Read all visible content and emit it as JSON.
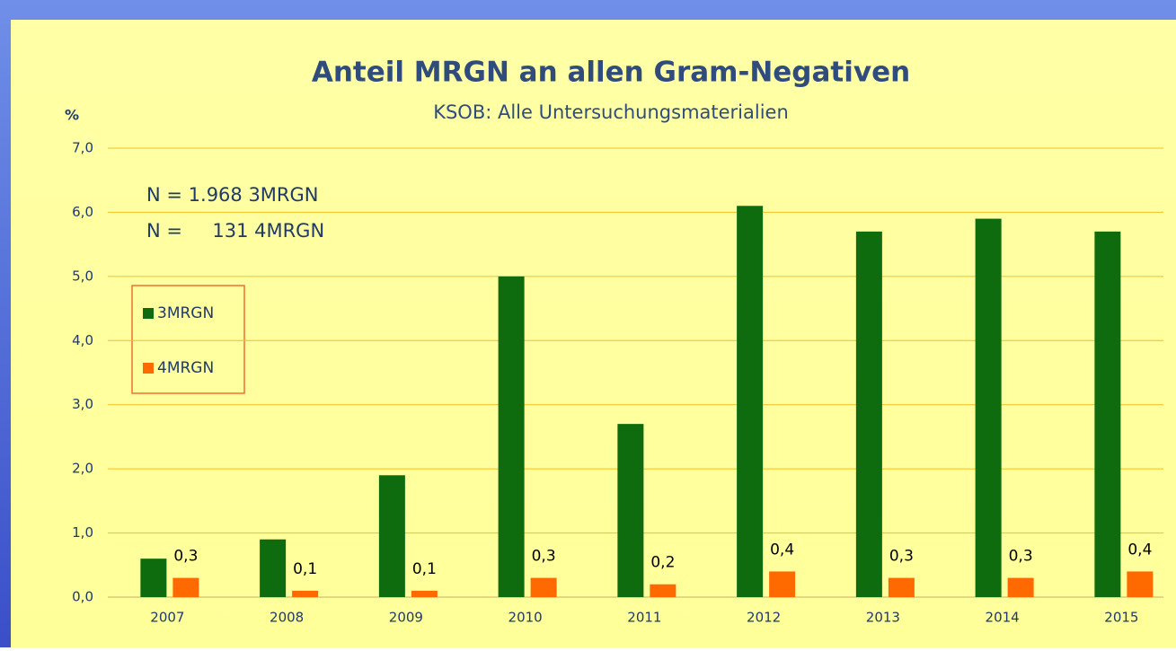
{
  "chart_data": {
    "type": "bar",
    "title": "Anteil MRGN an allen Gram-Negativen",
    "subtitle": "KSOB: Alle Untersuchungsmaterialien",
    "y_label": "%",
    "annotations": [
      "N = 1.968 3MRGN",
      "N =     131 4MRGN"
    ],
    "categories": [
      "2007",
      "2008",
      "2009",
      "2010",
      "2011",
      "2012",
      "2013",
      "2014",
      "2015"
    ],
    "series": [
      {
        "name": "3MRGN",
        "color": "#0e6b0e",
        "values": [
          0.6,
          0.9,
          1.9,
          5.0,
          2.7,
          6.1,
          5.7,
          5.9,
          5.7
        ]
      },
      {
        "name": "4MRGN",
        "color": "#ff6a00",
        "values": [
          0.3,
          0.1,
          0.1,
          0.3,
          0.2,
          0.4,
          0.3,
          0.3,
          0.4
        ],
        "value_labels": [
          "0,3",
          "0,1",
          "0,1",
          "0,3",
          "0,2",
          "0,4",
          "0,3",
          "0,3",
          "0,4"
        ]
      }
    ],
    "ylim": [
      0,
      7
    ],
    "yticks": [
      {
        "value": 0,
        "label": "0,0"
      },
      {
        "value": 1,
        "label": "1,0"
      },
      {
        "value": 2,
        "label": "2,0"
      },
      {
        "value": 3,
        "label": "3,0"
      },
      {
        "value": 4,
        "label": "4,0"
      },
      {
        "value": 5,
        "label": "5,0"
      },
      {
        "value": 6,
        "label": "6,0"
      },
      {
        "value": 7,
        "label": "7,0"
      }
    ],
    "grid": true,
    "legend": "left"
  }
}
